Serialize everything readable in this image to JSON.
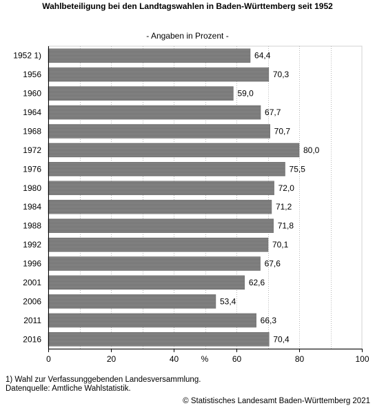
{
  "chart_data": {
    "type": "bar",
    "orientation": "horizontal",
    "title": "Wahlbeteiligung bei den Landtagswahlen in Baden-Württemberg seit 1952",
    "subtitle": "- Angaben in Prozent -",
    "xlabel": "%",
    "ylabel": "",
    "categories": [
      "1952 1)",
      "1956",
      "1960",
      "1964",
      "1968",
      "1972",
      "1976",
      "1980",
      "1984",
      "1988",
      "1992",
      "1996",
      "2001",
      "2006",
      "2011",
      "2016"
    ],
    "values": [
      64.4,
      70.3,
      59.0,
      67.7,
      70.7,
      80.0,
      75.5,
      72.0,
      71.2,
      71.8,
      70.1,
      67.6,
      62.6,
      53.4,
      66.3,
      70.4
    ],
    "value_labels": [
      "64,4",
      "70,3",
      "59,0",
      "67,7",
      "70,7",
      "80,0",
      "75,5",
      "72,0",
      "71,2",
      "71,8",
      "70,1",
      "67,6",
      "62,6",
      "53,4",
      "66,3",
      "70,4"
    ],
    "xlim": [
      0,
      100
    ],
    "xticks": [
      0,
      20,
      40,
      60,
      80,
      100
    ],
    "grid": "vertical dotted",
    "legend": "none",
    "bar_color": "#808080"
  },
  "footnotes": {
    "note1": "1) Wahl zur Verfassunggebenden Landesversammlung.",
    "source": "Datenquelle: Amtliche Wahlstatistik."
  },
  "copyright": "© Statistisches Landesamt Baden-Württemberg 2021"
}
